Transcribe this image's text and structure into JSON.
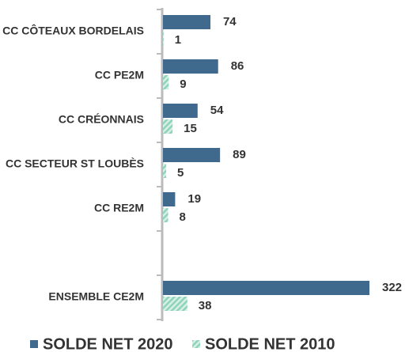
{
  "chart_data": {
    "type": "bar",
    "orientation": "horizontal",
    "categories": [
      "CC CÔTEAUX BORDELAIS",
      "CC PE2M",
      "CC CRÉONNAIS",
      "CC SECTEUR ST LOUBÈS",
      "CC RE2M",
      null,
      "ENSEMBLE CE2M"
    ],
    "series": [
      {
        "name": "SOLDE NET 2020",
        "color": "#3f6a8d",
        "values": [
          74,
          86,
          54,
          89,
          19,
          null,
          322
        ]
      },
      {
        "name": "SOLDE NET 2010",
        "color": "#8fd3bb",
        "values": [
          1,
          9,
          15,
          5,
          8,
          null,
          38
        ]
      }
    ],
    "legend": "bottom"
  }
}
